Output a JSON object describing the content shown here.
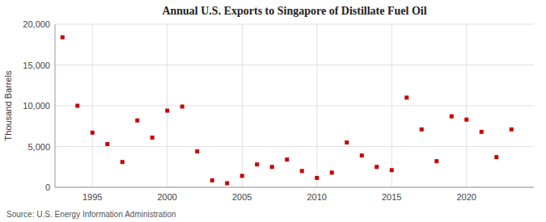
{
  "chart_data": {
    "type": "scatter",
    "title": "Annual U.S. Exports to Singapore of Distillate Fuel Oil",
    "ylabel": "Thousand Barrels",
    "source": "Source: U.S. Energy Information Administration",
    "color": "#cc0000",
    "marker": "square",
    "x": [
      1993,
      1994,
      1995,
      1996,
      1997,
      1998,
      1999,
      2000,
      2001,
      2002,
      2003,
      2004,
      2005,
      2006,
      2007,
      2008,
      2009,
      2010,
      2011,
      2012,
      2013,
      2014,
      2015,
      2016,
      2017,
      2018,
      2019,
      2020,
      2021,
      2022,
      2023
    ],
    "values": [
      18400,
      10000,
      6700,
      5300,
      3100,
      8200,
      6100,
      9400,
      9900,
      4400,
      850,
      500,
      1400,
      2800,
      2500,
      3400,
      2000,
      1150,
      1800,
      5500,
      3900,
      2500,
      2100,
      11000,
      7100,
      3200,
      8700,
      8300,
      6800,
      3700,
      7100
    ],
    "xlim": [
      1992.5,
      2024.5
    ],
    "ylim": [
      0,
      20000
    ],
    "xticks": [
      1995,
      2000,
      2005,
      2010,
      2015,
      2020
    ],
    "yticks": [
      0,
      {
        "value": 5000,
        "label": "5,000"
      },
      {
        "value": 10000,
        "label": "10,000"
      },
      {
        "value": 15000,
        "label": "15,000"
      },
      {
        "value": 20000,
        "label": "20,000"
      }
    ],
    "grid": true
  }
}
